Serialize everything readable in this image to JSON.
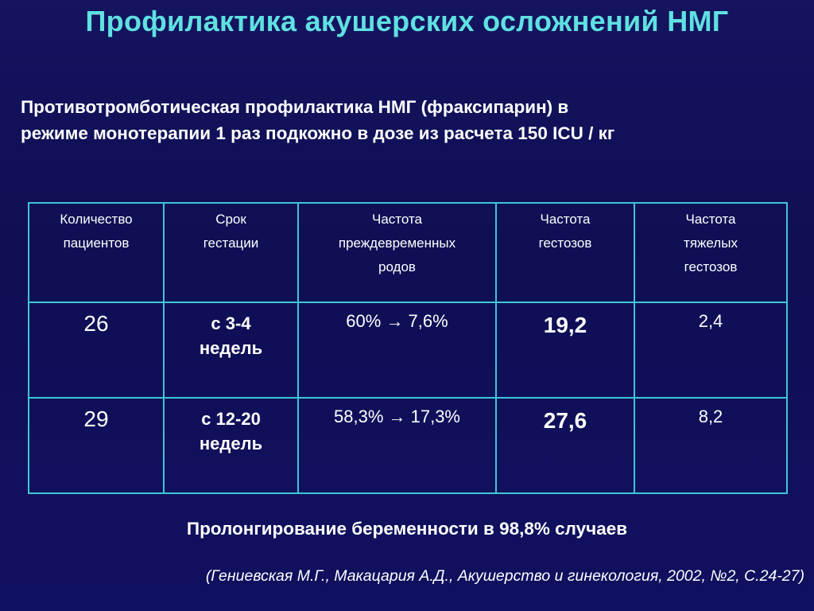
{
  "title": "Профилактика акушерских осложнений НМГ",
  "subtitle": {
    "line1": "Противотромботическая профилактика НМГ (фраксипарин) в",
    "line2": "режиме монотерапии 1 раз подкожно в дозе из расчета 150 ICU / кг"
  },
  "table": {
    "headers": [
      [
        "Количество",
        "пациентов"
      ],
      [
        "Срок",
        "гестации"
      ],
      [
        "Частота",
        "преждевременных",
        "родов"
      ],
      [
        "Частота",
        "гестозов"
      ],
      [
        "Частота",
        "тяжелых",
        "гестозов"
      ]
    ],
    "rows": [
      {
        "patients": "26",
        "gestation": [
          "с 3-4",
          "недель"
        ],
        "preterm": "60% → 7,6%",
        "gestosis": "19,2",
        "severe": "2,4"
      },
      {
        "patients": "29",
        "gestation": [
          "с 12-20",
          "недель"
        ],
        "preterm": "58,3% → 17,3%",
        "gestosis": "27,6",
        "severe": "8,2"
      }
    ]
  },
  "summary": "Пролонгирование беременности в 98,8% случаев",
  "citation": "(Гениевская М.Г., Макацария А.Д., Акушерство и гинекология, 2002, №2, С.24-27)"
}
